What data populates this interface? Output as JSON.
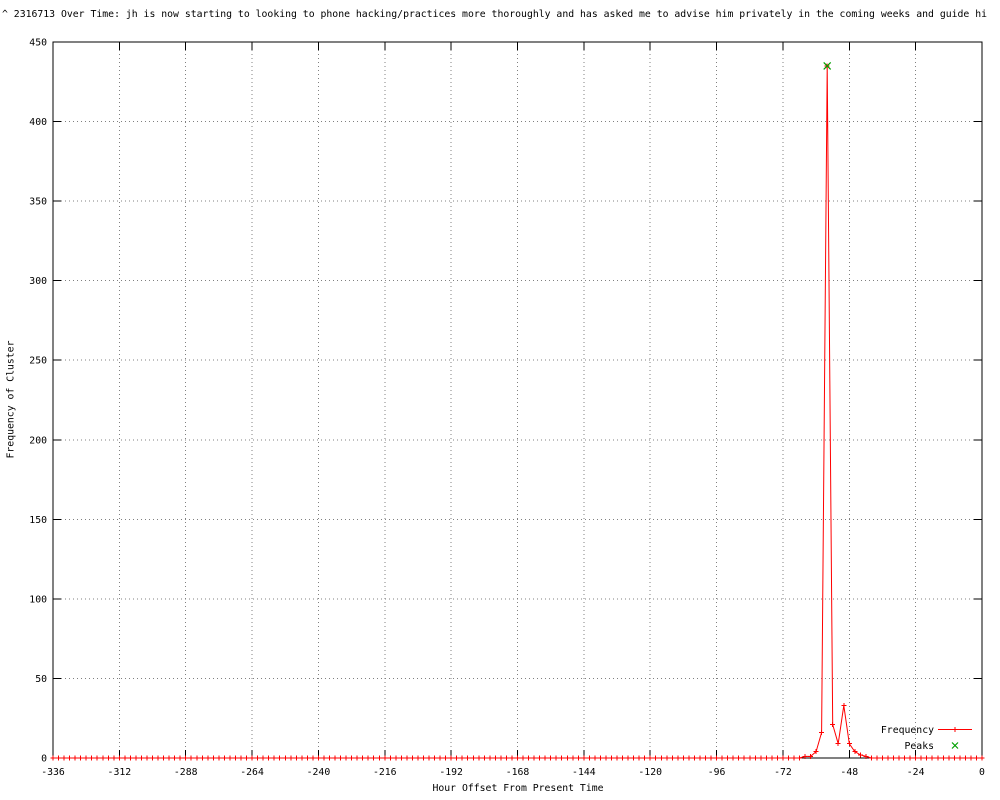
{
  "title": "^ 2316713 Over Time: jh is now starting to looking to phone hacking/practices more thoroughly and has asked me to advise him privately in the coming weeks and guide hi",
  "chart_data": {
    "type": "line",
    "title": "^ 2316713 Over Time: jh is now starting to looking to phone hacking/practices more thoroughly and has asked me to advise him privately in the coming weeks and guide hi",
    "xlabel": "Hour Offset From Present Time",
    "ylabel": "Frequency of Cluster",
    "xlim": [
      -336,
      0
    ],
    "ylim": [
      0,
      450
    ],
    "x_ticks": [
      -336,
      -312,
      -288,
      -264,
      -240,
      -216,
      -192,
      -168,
      -144,
      -120,
      -96,
      -72,
      -48,
      -24,
      0
    ],
    "y_ticks": [
      0,
      50,
      100,
      150,
      200,
      250,
      300,
      350,
      400,
      450
    ],
    "grid": true,
    "grid_style": "dotted",
    "grid_color": "#808080",
    "border_color": "#000000",
    "legend_position": "inside-bottom-right",
    "series": [
      {
        "name": "Frequency",
        "color": "#ff0000",
        "marker": "plus",
        "style": "linespoints",
        "x_start": -336,
        "x_end": 0,
        "x_step": 2,
        "default_value": 0,
        "nonzero_values": {
          "-64": 1,
          "-62": 1,
          "-60": 4,
          "-58": 16,
          "-56": 435,
          "-54": 21,
          "-52": 9,
          "-50": 33,
          "-48": 9,
          "-46": 4,
          "-44": 2,
          "-42": 1
        }
      },
      {
        "name": "Peaks",
        "color": "#00a000",
        "marker": "cross",
        "style": "points",
        "points": [
          {
            "x": -56,
            "y": 435
          }
        ]
      }
    ]
  }
}
